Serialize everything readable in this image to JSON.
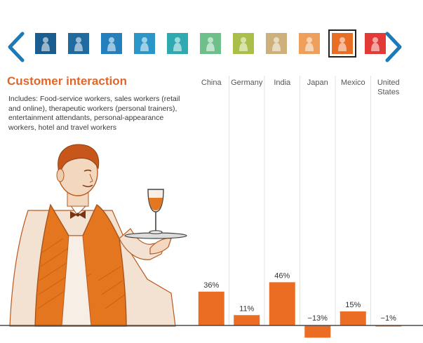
{
  "nav": {
    "prev_icon": "chevron-left-icon",
    "next_icon": "chevron-right-icon",
    "arrow_color": "#1e7ab6"
  },
  "thumbnails": [
    {
      "icon": "worker-icon",
      "color": "#1b5d8e"
    },
    {
      "icon": "worker-icon",
      "color": "#1f6ba0"
    },
    {
      "icon": "worker-icon",
      "color": "#2380bd"
    },
    {
      "icon": "worker-icon",
      "color": "#2b97c9"
    },
    {
      "icon": "worker-icon",
      "color": "#2eaab0"
    },
    {
      "icon": "worker-icon",
      "color": "#6fbf8a"
    },
    {
      "icon": "worker-icon",
      "color": "#a9bf4a"
    },
    {
      "icon": "worker-icon",
      "color": "#cdb07c"
    },
    {
      "icon": "worker-icon",
      "color": "#ee9f5c"
    },
    {
      "icon": "waiter-icon",
      "color": "#e86e25",
      "selected": true
    },
    {
      "icon": "worker-icon",
      "color": "#e23a36"
    }
  ],
  "section": {
    "title": "Customer interaction",
    "description": "Includes: Food-service workers, sales workers (retail and online), therapeutic workers (personal trainers), entertainment attendants, personal-appearance workers, hotel and travel workers",
    "illustration": "waiter-illustration"
  },
  "colors": {
    "accent": "#e86e25",
    "bar": "#ea6d23"
  },
  "chart_data": {
    "type": "bar",
    "categories": [
      "China",
      "Germany",
      "India",
      "Japan",
      "Mexico",
      "United States"
    ],
    "values": [
      36,
      11,
      46,
      -13,
      15,
      -1
    ],
    "value_labels": [
      "36%",
      "11%",
      "46%",
      "−13%",
      "15%",
      "−1%"
    ],
    "title": "Customer interaction",
    "xlabel": "",
    "ylabel": "",
    "grid": false
  }
}
